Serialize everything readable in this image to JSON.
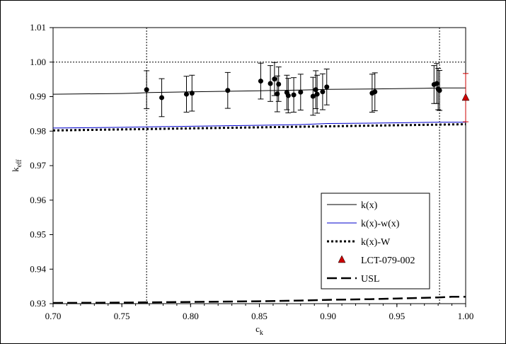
{
  "chart_data": {
    "type": "scatter",
    "title": "",
    "xlabel": "c",
    "xlabel_sub": "k",
    "ylabel": "k",
    "ylabel_sub": "eff",
    "xlim": [
      0.7,
      1.0
    ],
    "ylim": [
      0.93,
      1.01
    ],
    "x_ticks": [
      "0.70",
      "0.75",
      "0.80",
      "0.85",
      "0.90",
      "0.95",
      "1.00"
    ],
    "y_ticks": [
      "0.93",
      "0.94",
      "0.95",
      "0.96",
      "0.97",
      "0.98",
      "0.99",
      "1.00",
      "1.01"
    ],
    "reference_lines": {
      "vertical": [
        0.768,
        0.981
      ],
      "horizontal": [
        1.0
      ]
    },
    "legend_position": "bottom-right",
    "series": [
      {
        "name": "k(x)",
        "style": "solid",
        "color": "#000000",
        "x": [
          0.7,
          0.75,
          0.76,
          0.77,
          0.8,
          0.85,
          0.88,
          0.9,
          0.93,
          0.95,
          0.97,
          0.98,
          1.0
        ],
        "y": [
          0.9907,
          0.9909,
          0.991,
          0.9912,
          0.9914,
          0.9917,
          0.9919,
          0.9921,
          0.9922,
          0.9923,
          0.9924,
          0.9925,
          0.9925
        ]
      },
      {
        "name": "k(x)-w(x)",
        "style": "solid",
        "color": "#0000cc",
        "x": [
          0.7,
          0.75,
          0.78,
          0.8,
          0.85,
          0.88,
          0.9,
          0.93,
          0.95,
          0.98,
          1.0
        ],
        "y": [
          0.9809,
          0.9811,
          0.9813,
          0.9814,
          0.9817,
          0.9819,
          0.9822,
          0.9823,
          0.9824,
          0.9826,
          0.9826
        ]
      },
      {
        "name": "k(x)-W",
        "style": "dotted",
        "color": "#000000",
        "x": [
          0.7,
          1.0
        ],
        "y": [
          0.9802,
          0.982
        ]
      },
      {
        "name": "USL",
        "style": "dashed",
        "color": "#000000",
        "x": [
          0.7,
          0.75,
          0.8,
          0.85,
          0.88,
          0.9,
          0.93,
          0.95,
          0.98,
          0.99,
          1.0
        ],
        "y": [
          0.9302,
          0.9303,
          0.9305,
          0.9307,
          0.9309,
          0.9311,
          0.9313,
          0.9315,
          0.9318,
          0.932,
          0.932
        ]
      }
    ],
    "points": [
      {
        "x": 0.768,
        "y": 0.992,
        "err": 0.0055
      },
      {
        "x": 0.779,
        "y": 0.9897,
        "err": 0.0055
      },
      {
        "x": 0.797,
        "y": 0.9907,
        "err": 0.0052
      },
      {
        "x": 0.801,
        "y": 0.991,
        "err": 0.0052
      },
      {
        "x": 0.827,
        "y": 0.9918,
        "err": 0.0052
      },
      {
        "x": 0.851,
        "y": 0.9945,
        "err": 0.0052
      },
      {
        "x": 0.858,
        "y": 0.9938,
        "err": 0.0052
      },
      {
        "x": 0.861,
        "y": 0.9951,
        "err": 0.0048
      },
      {
        "x": 0.863,
        "y": 0.9908,
        "err": 0.0052
      },
      {
        "x": 0.864,
        "y": 0.9936,
        "err": 0.005
      },
      {
        "x": 0.87,
        "y": 0.9912,
        "err": 0.005
      },
      {
        "x": 0.871,
        "y": 0.9903,
        "err": 0.005
      },
      {
        "x": 0.875,
        "y": 0.9905,
        "err": 0.005
      },
      {
        "x": 0.88,
        "y": 0.9913,
        "err": 0.0052
      },
      {
        "x": 0.889,
        "y": 0.9901,
        "err": 0.0055
      },
      {
        "x": 0.891,
        "y": 0.992,
        "err": 0.0055
      },
      {
        "x": 0.892,
        "y": 0.9907,
        "err": 0.0055
      },
      {
        "x": 0.896,
        "y": 0.9914,
        "err": 0.0052
      },
      {
        "x": 0.899,
        "y": 0.9928,
        "err": 0.0052
      },
      {
        "x": 0.932,
        "y": 0.991,
        "err": 0.0055
      },
      {
        "x": 0.934,
        "y": 0.9914,
        "err": 0.0055
      },
      {
        "x": 0.977,
        "y": 0.9935,
        "err": 0.0055
      },
      {
        "x": 0.979,
        "y": 0.9938,
        "err": 0.0058
      },
      {
        "x": 0.98,
        "y": 0.9922,
        "err": 0.006
      },
      {
        "x": 0.981,
        "y": 0.9918,
        "err": 0.0058
      }
    ],
    "highlight_point": {
      "name": "LCT-079-002",
      "x": 1.0,
      "y": 0.9897,
      "err": 0.007,
      "color": "#cc0000"
    }
  }
}
